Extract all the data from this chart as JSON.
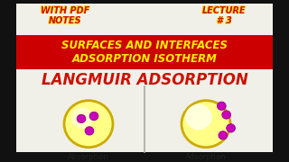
{
  "bg_color": "#111111",
  "inner_bg": "#f0f0e8",
  "top_left_text": "WITH PDF\nNOTES",
  "top_right_text": "LECTURE\n# 3",
  "top_text_color": "#cc1100",
  "top_text_outline": "#ffdd00",
  "banner_bg": "#cc0000",
  "banner_text_line1": "SURFACES AND INTERFACES",
  "banner_text_line2": "ADSORPTION ISOTHERM",
  "banner_text_color": "#ffee00",
  "main_title": "LANGMUIR ADSORPTION",
  "main_title_color": "#cc1100",
  "circle_face": "#ffff88",
  "circle_edge": "#ccaa00",
  "circle_highlight": "#ffffee",
  "dot_color": "#cc00bb",
  "dot_edge": "#990099",
  "label_left": "Absorption",
  "label_right": "Adsorption",
  "label_color": "#222222",
  "divider_color": "#aaaaaa",
  "border_color": "#111111"
}
